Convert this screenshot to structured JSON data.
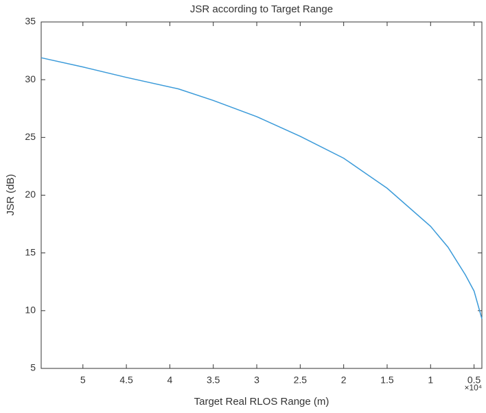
{
  "chart_data": {
    "type": "line",
    "title": "JSR according to Target Range",
    "x_label": "Target Real RLOS Range (m)",
    "y_label": "JSR (dB)",
    "x_exponent": "×10⁴",
    "x": [
      54800,
      50000,
      45000,
      39000,
      35000,
      30000,
      25000,
      20000,
      15000,
      10000,
      8000,
      6000,
      5000,
      4100
    ],
    "series": [
      {
        "name": "JSR",
        "color": "#3a9ad9",
        "values": [
          31.9,
          31.1,
          30.2,
          29.2,
          28.2,
          26.8,
          25.1,
          23.2,
          20.6,
          17.3,
          15.5,
          13.1,
          11.7,
          9.3
        ]
      }
    ],
    "xlim": [
      54800,
      4100
    ],
    "xticks": [
      {
        "value": 50000,
        "label": "5"
      },
      {
        "value": 45000,
        "label": "4.5"
      },
      {
        "value": 40000,
        "label": "4"
      },
      {
        "value": 35000,
        "label": "3.5"
      },
      {
        "value": 30000,
        "label": "3"
      },
      {
        "value": 25000,
        "label": "2.5"
      },
      {
        "value": 20000,
        "label": "2"
      },
      {
        "value": 15000,
        "label": "1.5"
      },
      {
        "value": 10000,
        "label": "1"
      },
      {
        "value": 5000,
        "label": "0.5"
      }
    ],
    "ylim": [
      5,
      35
    ],
    "yticks": [
      5,
      10,
      15,
      20,
      25,
      30,
      35
    ],
    "grid": false
  }
}
